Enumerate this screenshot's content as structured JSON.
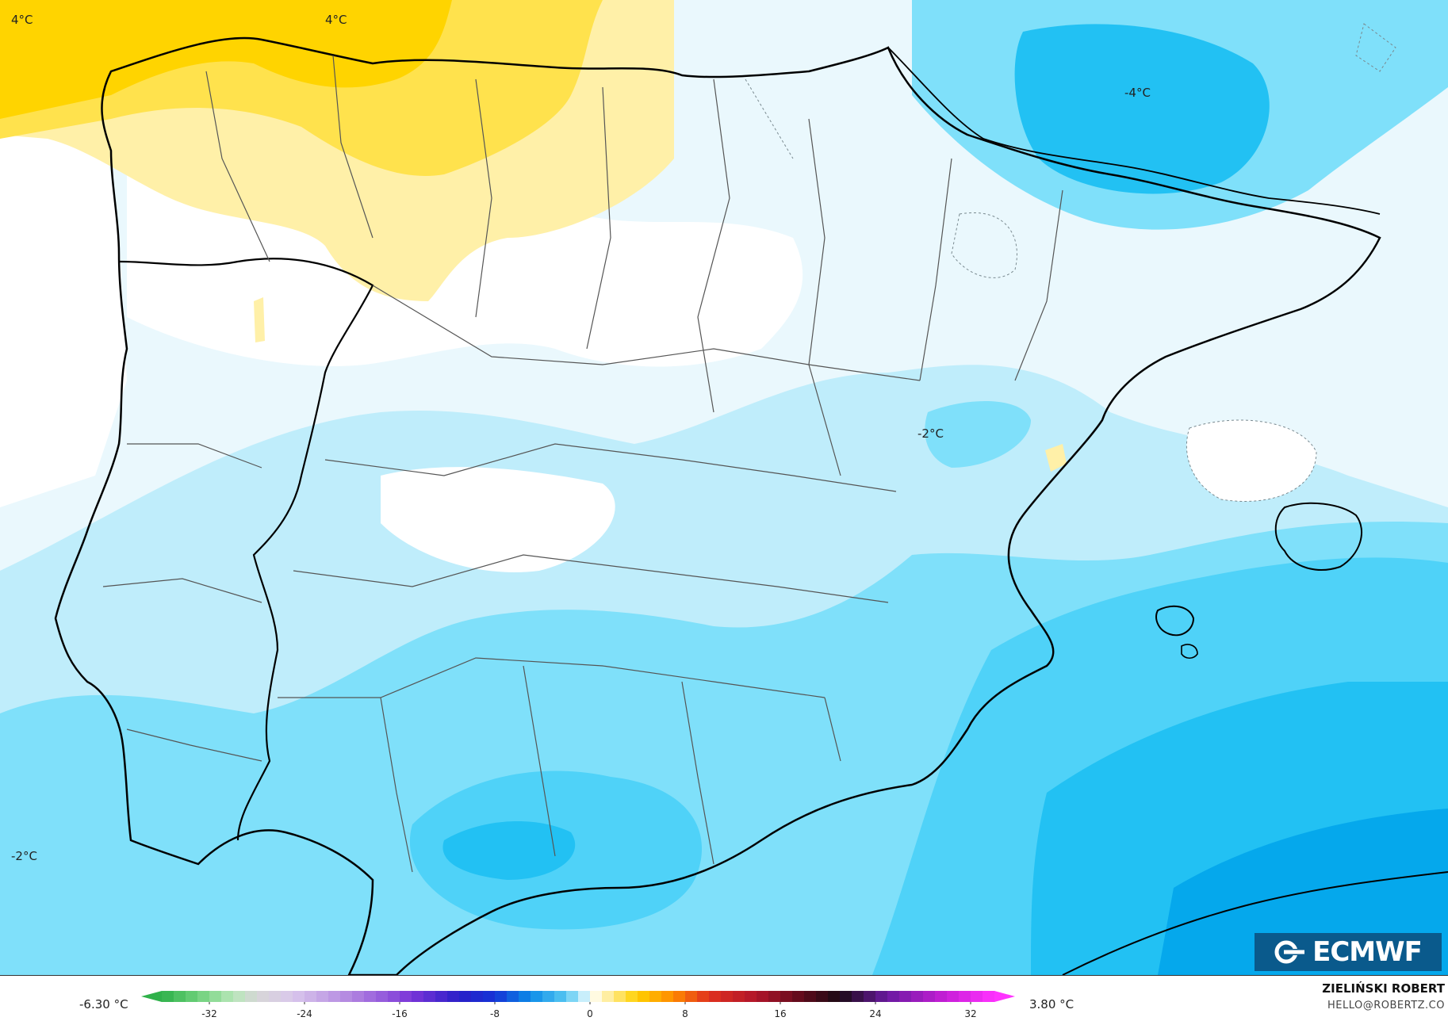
{
  "map": {
    "contour_labels": [
      {
        "id": "nw-4",
        "text": "4°C"
      },
      {
        "id": "n-4",
        "text": "4°C"
      },
      {
        "id": "pyr-neg4",
        "text": "-4°C"
      },
      {
        "id": "east-neg2",
        "text": "-2°C"
      },
      {
        "id": "sw-neg2",
        "text": "-2°C"
      }
    ]
  },
  "legend": {
    "min_label": "-6.30 °C",
    "max_label": "3.80 °C",
    "ticks": [
      "-32",
      "-24",
      "-16",
      "-8",
      "0",
      "8",
      "16",
      "24",
      "32"
    ],
    "tick_values": [
      -32,
      -24,
      -16,
      -8,
      0,
      8,
      16,
      24,
      32
    ],
    "range": [
      -36,
      34
    ],
    "stops": [
      {
        "v": -36,
        "c": "#2fb14a"
      },
      {
        "v": -33,
        "c": "#6cd07a"
      },
      {
        "v": -30,
        "c": "#b7e7b8"
      },
      {
        "v": -28,
        "c": "#d6d6d6"
      },
      {
        "v": -25,
        "c": "#d9c7ec"
      },
      {
        "v": -20,
        "c": "#b184e0"
      },
      {
        "v": -15,
        "c": "#7a35d8"
      },
      {
        "v": -11,
        "c": "#2a1fc8"
      },
      {
        "v": -8,
        "c": "#1433d6"
      },
      {
        "v": -5,
        "c": "#0c8ce8"
      },
      {
        "v": -2,
        "c": "#58c8f2"
      },
      {
        "v": -0.5,
        "c": "#c8eefb"
      },
      {
        "v": 0,
        "c": "#ffffff"
      },
      {
        "v": 1,
        "c": "#fff4c2"
      },
      {
        "v": 4,
        "c": "#ffd000"
      },
      {
        "v": 7,
        "c": "#ff8a00"
      },
      {
        "v": 10,
        "c": "#e0301e"
      },
      {
        "v": 14,
        "c": "#b0142a"
      },
      {
        "v": 18,
        "c": "#5a0a1a"
      },
      {
        "v": 21,
        "c": "#1a0a14"
      },
      {
        "v": 25,
        "c": "#6a1aa0"
      },
      {
        "v": 30,
        "c": "#c81ed8"
      },
      {
        "v": 34,
        "c": "#ff33ff"
      }
    ]
  },
  "brand": {
    "logo_text": "ECMWF",
    "author": "ZIELIŃSKI ROBERT",
    "email": "HELLO@ROBERTZ.CO"
  },
  "colors": {
    "warm_4": "#ffd400",
    "warm_3": "#ffe24d",
    "warm_2": "#fff0a8",
    "zero": "#ffffff",
    "cold_05": "#eaf8fd",
    "cold_1": "#bfedfb",
    "cold_2": "#7fe0fa",
    "cold_3": "#4fd2f8",
    "cold_4": "#22c1f3",
    "cold_5": "#05a8ec",
    "coast": "#000000",
    "border": "#555555",
    "logo_bg": "#0a5a8c"
  }
}
